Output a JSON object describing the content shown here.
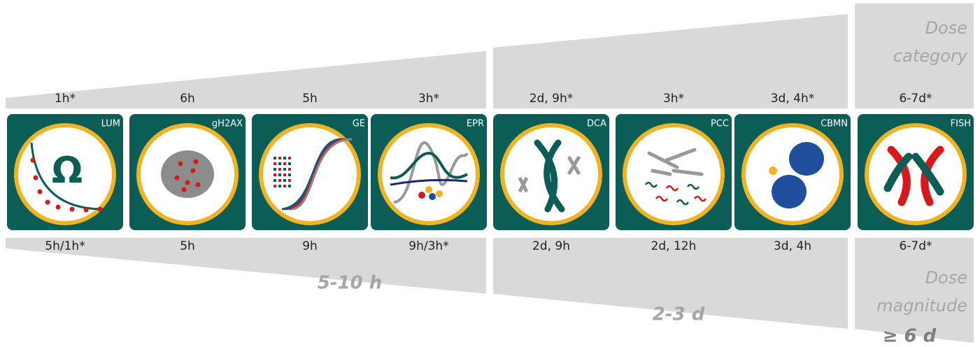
{
  "tiles": [
    {
      "name": "LUM",
      "top": "1h*",
      "bottom": "5h/1h*",
      "symbol": "Ω"
    },
    {
      "name": "gH2AX",
      "top": "6h",
      "bottom": "5h"
    },
    {
      "name": "GE",
      "top": "5h",
      "bottom": "9h"
    },
    {
      "name": "EPR",
      "top": "3h*",
      "bottom": "9h/3h*"
    },
    {
      "name": "DCA",
      "top": "2d, 9h*",
      "bottom": "2d, 9h"
    },
    {
      "name": "PCC",
      "top": "3h*",
      "bottom": "2d, 12h"
    },
    {
      "name": "CBMN",
      "top": "3d, 4h*",
      "bottom": "3d, 4h"
    },
    {
      "name": "FISH",
      "top": "6-7d*",
      "bottom": "6-7d*"
    }
  ],
  "groups": [
    "5-10 h",
    "2-3 d",
    "≥ 6 d"
  ],
  "top_caption": "Dose category",
  "bottom_caption": "Dose magnitude"
}
